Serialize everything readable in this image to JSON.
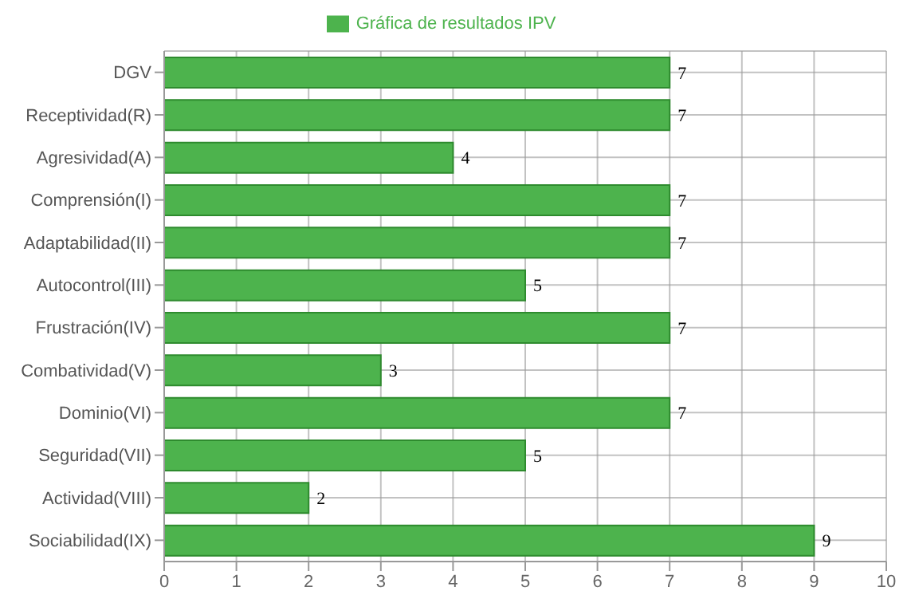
{
  "chart_data": {
    "type": "bar",
    "orientation": "horizontal",
    "categories": [
      "DGV",
      "Receptividad(R)",
      "Agresividad(A)",
      "Comprensión(I)",
      "Adaptabilidad(II)",
      "Autocontrol(III)",
      "Frustración(IV)",
      "Combatividad(V)",
      "Dominio(VI)",
      "Seguridad(VII)",
      "Actividad(VIII)",
      "Sociabilidad(IX)"
    ],
    "series": [
      {
        "name": "Gráfica de resultados IPV",
        "color": "#4db34d",
        "values": [
          7,
          7,
          4,
          7,
          7,
          5,
          7,
          3,
          7,
          5,
          2,
          9
        ]
      }
    ],
    "xlim": [
      0,
      10
    ],
    "xticks": [
      0,
      1,
      2,
      3,
      4,
      5,
      6,
      7,
      8,
      9,
      10
    ],
    "grid": true,
    "legend": "top",
    "data_labels": true
  }
}
